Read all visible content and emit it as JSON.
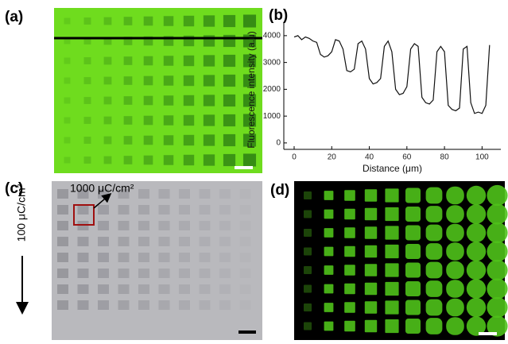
{
  "labels": [
    "(a)",
    "(b)",
    "(c)",
    "(d)"
  ],
  "annotations": [
    "1000 μC/cm²",
    "100 μC/cm²"
  ],
  "chart_data": {
    "type": "line",
    "x": [
      0,
      2,
      4,
      6,
      8,
      10,
      12,
      14,
      16,
      18,
      20,
      22,
      24,
      26,
      28,
      30,
      32,
      34,
      36,
      38,
      40,
      42,
      44,
      46,
      48,
      50,
      52,
      54,
      56,
      58,
      60,
      62,
      64,
      66,
      68,
      70,
      72,
      74,
      76,
      78,
      80,
      82,
      84,
      86,
      88,
      90,
      92,
      94,
      96,
      98,
      100,
      102,
      104
    ],
    "values": [
      3950,
      4000,
      3850,
      3950,
      3900,
      3800,
      3750,
      3300,
      3200,
      3250,
      3400,
      3850,
      3800,
      3500,
      2700,
      2650,
      2750,
      3700,
      3800,
      3500,
      2400,
      2200,
      2250,
      2400,
      3600,
      3800,
      3400,
      2000,
      1800,
      1850,
      2100,
      3500,
      3700,
      3600,
      1700,
      1500,
      1450,
      1600,
      3400,
      3600,
      3400,
      1400,
      1250,
      1200,
      1300,
      3500,
      3600,
      1500,
      1100,
      1150,
      1100,
      1400,
      3650
    ],
    "color": "#111111",
    "x_label": "Distance (μm)",
    "y_label": "Fluorescence intensity (a.u)",
    "xlim": [
      -5.5,
      110
    ],
    "xticks": [
      0,
      20,
      40,
      60,
      80,
      100
    ],
    "ylim": [
      -240,
      4500
    ],
    "yticks": [
      0,
      1000,
      2000,
      3000,
      4000
    ]
  }
}
